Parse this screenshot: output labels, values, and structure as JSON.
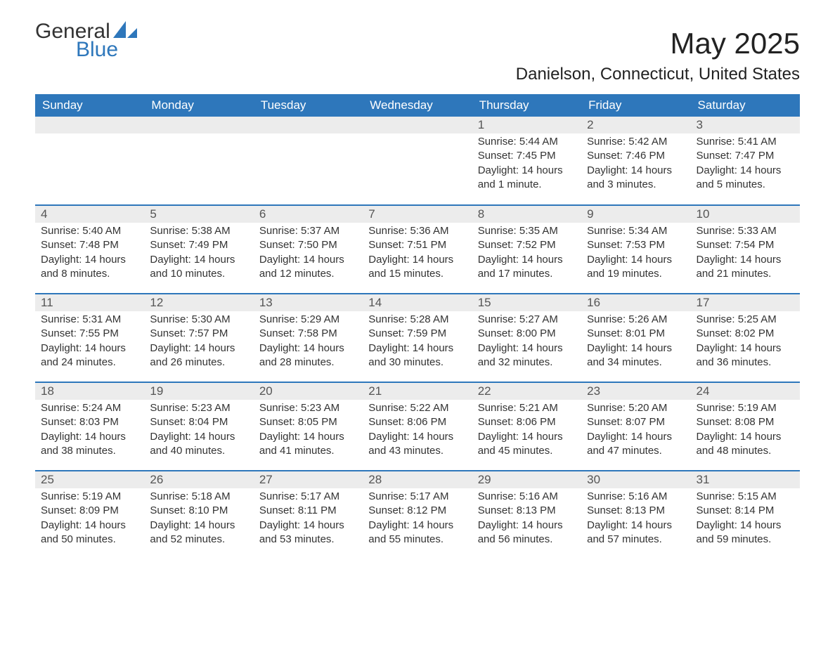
{
  "logo": {
    "word1": "General",
    "word2": "Blue"
  },
  "title": "May 2025",
  "subtitle": "Danielson, Connecticut, United States",
  "colors": {
    "header_bg": "#2e77bb",
    "header_text": "#ffffff",
    "daynum_bg": "#ececec",
    "text": "#333333",
    "logo_accent": "#2e77bb"
  },
  "day_headers": [
    "Sunday",
    "Monday",
    "Tuesday",
    "Wednesday",
    "Thursday",
    "Friday",
    "Saturday"
  ],
  "weeks": [
    [
      {
        "num": "",
        "sunrise": "",
        "sunset": "",
        "daylight": ""
      },
      {
        "num": "",
        "sunrise": "",
        "sunset": "",
        "daylight": ""
      },
      {
        "num": "",
        "sunrise": "",
        "sunset": "",
        "daylight": ""
      },
      {
        "num": "",
        "sunrise": "",
        "sunset": "",
        "daylight": ""
      },
      {
        "num": "1",
        "sunrise": "Sunrise: 5:44 AM",
        "sunset": "Sunset: 7:45 PM",
        "daylight": "Daylight: 14 hours and 1 minute."
      },
      {
        "num": "2",
        "sunrise": "Sunrise: 5:42 AM",
        "sunset": "Sunset: 7:46 PM",
        "daylight": "Daylight: 14 hours and 3 minutes."
      },
      {
        "num": "3",
        "sunrise": "Sunrise: 5:41 AM",
        "sunset": "Sunset: 7:47 PM",
        "daylight": "Daylight: 14 hours and 5 minutes."
      }
    ],
    [
      {
        "num": "4",
        "sunrise": "Sunrise: 5:40 AM",
        "sunset": "Sunset: 7:48 PM",
        "daylight": "Daylight: 14 hours and 8 minutes."
      },
      {
        "num": "5",
        "sunrise": "Sunrise: 5:38 AM",
        "sunset": "Sunset: 7:49 PM",
        "daylight": "Daylight: 14 hours and 10 minutes."
      },
      {
        "num": "6",
        "sunrise": "Sunrise: 5:37 AM",
        "sunset": "Sunset: 7:50 PM",
        "daylight": "Daylight: 14 hours and 12 minutes."
      },
      {
        "num": "7",
        "sunrise": "Sunrise: 5:36 AM",
        "sunset": "Sunset: 7:51 PM",
        "daylight": "Daylight: 14 hours and 15 minutes."
      },
      {
        "num": "8",
        "sunrise": "Sunrise: 5:35 AM",
        "sunset": "Sunset: 7:52 PM",
        "daylight": "Daylight: 14 hours and 17 minutes."
      },
      {
        "num": "9",
        "sunrise": "Sunrise: 5:34 AM",
        "sunset": "Sunset: 7:53 PM",
        "daylight": "Daylight: 14 hours and 19 minutes."
      },
      {
        "num": "10",
        "sunrise": "Sunrise: 5:33 AM",
        "sunset": "Sunset: 7:54 PM",
        "daylight": "Daylight: 14 hours and 21 minutes."
      }
    ],
    [
      {
        "num": "11",
        "sunrise": "Sunrise: 5:31 AM",
        "sunset": "Sunset: 7:55 PM",
        "daylight": "Daylight: 14 hours and 24 minutes."
      },
      {
        "num": "12",
        "sunrise": "Sunrise: 5:30 AM",
        "sunset": "Sunset: 7:57 PM",
        "daylight": "Daylight: 14 hours and 26 minutes."
      },
      {
        "num": "13",
        "sunrise": "Sunrise: 5:29 AM",
        "sunset": "Sunset: 7:58 PM",
        "daylight": "Daylight: 14 hours and 28 minutes."
      },
      {
        "num": "14",
        "sunrise": "Sunrise: 5:28 AM",
        "sunset": "Sunset: 7:59 PM",
        "daylight": "Daylight: 14 hours and 30 minutes."
      },
      {
        "num": "15",
        "sunrise": "Sunrise: 5:27 AM",
        "sunset": "Sunset: 8:00 PM",
        "daylight": "Daylight: 14 hours and 32 minutes."
      },
      {
        "num": "16",
        "sunrise": "Sunrise: 5:26 AM",
        "sunset": "Sunset: 8:01 PM",
        "daylight": "Daylight: 14 hours and 34 minutes."
      },
      {
        "num": "17",
        "sunrise": "Sunrise: 5:25 AM",
        "sunset": "Sunset: 8:02 PM",
        "daylight": "Daylight: 14 hours and 36 minutes."
      }
    ],
    [
      {
        "num": "18",
        "sunrise": "Sunrise: 5:24 AM",
        "sunset": "Sunset: 8:03 PM",
        "daylight": "Daylight: 14 hours and 38 minutes."
      },
      {
        "num": "19",
        "sunrise": "Sunrise: 5:23 AM",
        "sunset": "Sunset: 8:04 PM",
        "daylight": "Daylight: 14 hours and 40 minutes."
      },
      {
        "num": "20",
        "sunrise": "Sunrise: 5:23 AM",
        "sunset": "Sunset: 8:05 PM",
        "daylight": "Daylight: 14 hours and 41 minutes."
      },
      {
        "num": "21",
        "sunrise": "Sunrise: 5:22 AM",
        "sunset": "Sunset: 8:06 PM",
        "daylight": "Daylight: 14 hours and 43 minutes."
      },
      {
        "num": "22",
        "sunrise": "Sunrise: 5:21 AM",
        "sunset": "Sunset: 8:06 PM",
        "daylight": "Daylight: 14 hours and 45 minutes."
      },
      {
        "num": "23",
        "sunrise": "Sunrise: 5:20 AM",
        "sunset": "Sunset: 8:07 PM",
        "daylight": "Daylight: 14 hours and 47 minutes."
      },
      {
        "num": "24",
        "sunrise": "Sunrise: 5:19 AM",
        "sunset": "Sunset: 8:08 PM",
        "daylight": "Daylight: 14 hours and 48 minutes."
      }
    ],
    [
      {
        "num": "25",
        "sunrise": "Sunrise: 5:19 AM",
        "sunset": "Sunset: 8:09 PM",
        "daylight": "Daylight: 14 hours and 50 minutes."
      },
      {
        "num": "26",
        "sunrise": "Sunrise: 5:18 AM",
        "sunset": "Sunset: 8:10 PM",
        "daylight": "Daylight: 14 hours and 52 minutes."
      },
      {
        "num": "27",
        "sunrise": "Sunrise: 5:17 AM",
        "sunset": "Sunset: 8:11 PM",
        "daylight": "Daylight: 14 hours and 53 minutes."
      },
      {
        "num": "28",
        "sunrise": "Sunrise: 5:17 AM",
        "sunset": "Sunset: 8:12 PM",
        "daylight": "Daylight: 14 hours and 55 minutes."
      },
      {
        "num": "29",
        "sunrise": "Sunrise: 5:16 AM",
        "sunset": "Sunset: 8:13 PM",
        "daylight": "Daylight: 14 hours and 56 minutes."
      },
      {
        "num": "30",
        "sunrise": "Sunrise: 5:16 AM",
        "sunset": "Sunset: 8:13 PM",
        "daylight": "Daylight: 14 hours and 57 minutes."
      },
      {
        "num": "31",
        "sunrise": "Sunrise: 5:15 AM",
        "sunset": "Sunset: 8:14 PM",
        "daylight": "Daylight: 14 hours and 59 minutes."
      }
    ]
  ]
}
